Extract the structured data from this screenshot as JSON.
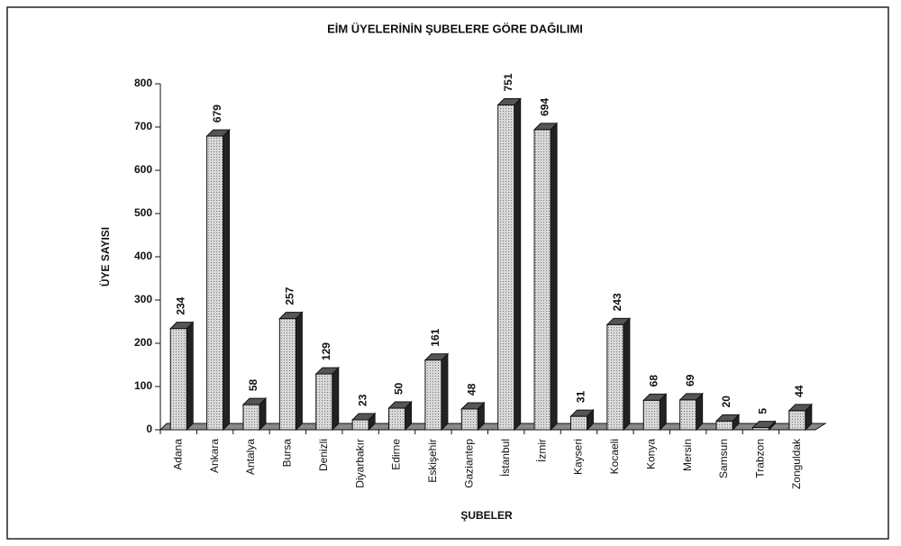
{
  "chart_data": {
    "type": "bar",
    "title": "EİM ÜYELERİNİN ŞUBELERE GÖRE DAĞILIMI",
    "y_label": "ÜYE SAYISI",
    "x_label": "ŞUBELER",
    "categories": [
      "Adana",
      "Ankara",
      "Antalya",
      "Bursa",
      "Denizli",
      "Diyarbakır",
      "Edirne",
      "Eskişehir",
      "Gaziantep",
      "İstanbul",
      "İzmir",
      "Kayseri",
      "Kocaeli",
      "Konya",
      "Mersin",
      "Samsun",
      "Trabzon",
      "Zonguldak"
    ],
    "values": [
      234,
      679,
      58,
      257,
      129,
      23,
      50,
      161,
      48,
      751,
      694,
      31,
      243,
      68,
      69,
      20,
      5,
      44
    ],
    "color": "#c8c8c8",
    "ylim": [
      0,
      800
    ],
    "yticks": [
      0,
      100,
      200,
      300,
      400,
      500,
      600,
      700,
      800
    ]
  }
}
